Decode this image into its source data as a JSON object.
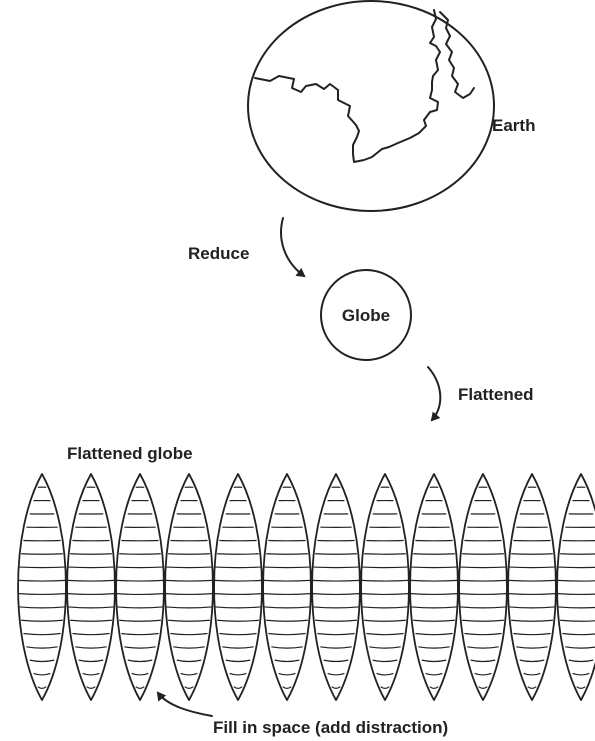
{
  "labels": {
    "earth": "Earth",
    "reduce": "Reduce",
    "globe": "Globe",
    "flattened": "Flattened",
    "flattened_globe": "Flattened globe",
    "fill_in_space": "Fill in space (add distraction)"
  },
  "gores": {
    "count": 12,
    "bands_per_gore": 17
  },
  "colors": {
    "ink": "#222222",
    "background": "#ffffff"
  }
}
